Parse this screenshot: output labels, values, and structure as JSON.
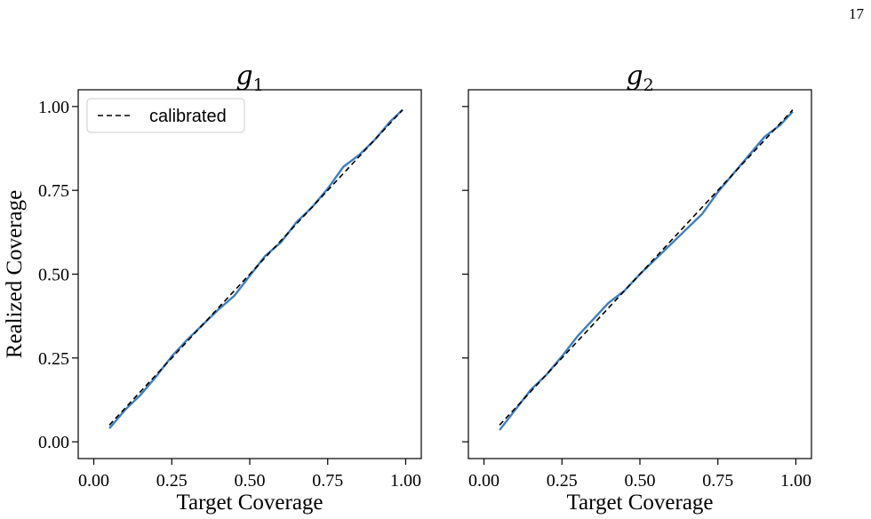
{
  "page_number": "17",
  "chart_data": [
    {
      "type": "line",
      "title": "g",
      "title_subscript": "1",
      "xlabel": "Target Coverage",
      "ylabel": "Realized Coverage",
      "xlim": [
        0.0,
        1.0
      ],
      "ylim": [
        0.0,
        1.0
      ],
      "x_ticks": [
        "0.00",
        "0.25",
        "0.50",
        "0.75",
        "1.00"
      ],
      "y_ticks": [
        "0.00",
        "0.25",
        "0.50",
        "0.75",
        "1.00"
      ],
      "grid": false,
      "legend": {
        "placement": "top-left",
        "entries": [
          "calibrated"
        ]
      },
      "series": [
        {
          "name": "calibrated",
          "style": "dashed",
          "color": "#000000",
          "x": [
            0.05,
            0.99
          ],
          "y": [
            0.05,
            0.99
          ]
        },
        {
          "style": "solid",
          "color": "#3d7fc0",
          "x": [
            0.05,
            0.1,
            0.15,
            0.2,
            0.25,
            0.3,
            0.35,
            0.4,
            0.45,
            0.5,
            0.55,
            0.6,
            0.65,
            0.7,
            0.75,
            0.8,
            0.85,
            0.9,
            0.95,
            0.99
          ],
          "y": [
            0.04,
            0.095,
            0.14,
            0.195,
            0.255,
            0.305,
            0.35,
            0.395,
            0.435,
            0.495,
            0.555,
            0.595,
            0.655,
            0.7,
            0.755,
            0.82,
            0.855,
            0.9,
            0.955,
            0.99
          ]
        }
      ]
    },
    {
      "type": "line",
      "title": "g",
      "title_subscript": "2",
      "xlabel": "Target Coverage",
      "ylabel": "",
      "xlim": [
        0.0,
        1.0
      ],
      "ylim": [
        0.0,
        1.0
      ],
      "x_ticks": [
        "0.00",
        "0.25",
        "0.50",
        "0.75",
        "1.00"
      ],
      "y_ticks": [],
      "grid": false,
      "series": [
        {
          "name": "calibrated",
          "style": "dashed",
          "color": "#000000",
          "x": [
            0.05,
            0.99
          ],
          "y": [
            0.05,
            0.99
          ]
        },
        {
          "style": "solid",
          "color": "#3d7fc0",
          "x": [
            0.05,
            0.1,
            0.15,
            0.2,
            0.25,
            0.3,
            0.35,
            0.4,
            0.45,
            0.5,
            0.55,
            0.6,
            0.65,
            0.7,
            0.75,
            0.8,
            0.85,
            0.9,
            0.95,
            0.99
          ],
          "y": [
            0.035,
            0.095,
            0.155,
            0.2,
            0.255,
            0.315,
            0.365,
            0.415,
            0.45,
            0.5,
            0.545,
            0.59,
            0.635,
            0.68,
            0.745,
            0.8,
            0.855,
            0.91,
            0.945,
            0.985
          ]
        }
      ]
    }
  ]
}
